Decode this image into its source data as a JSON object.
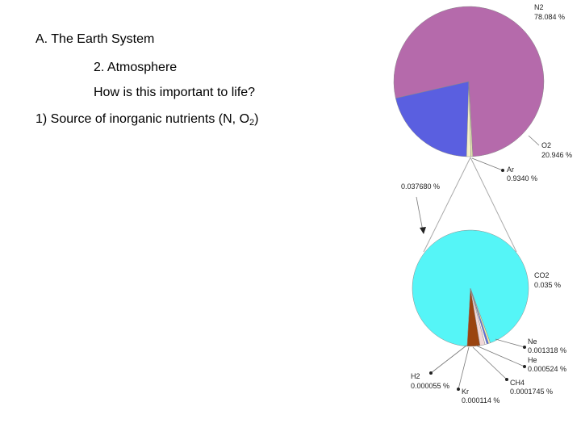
{
  "slide": {
    "heading": "A. The Earth System",
    "subheading": "2. Atmosphere",
    "question": "How is this important to life?",
    "point_prefix": "1) Source of inorganic nutrients (N, O",
    "point_sub": "2",
    "point_suffix": ")"
  },
  "chart_data": [
    {
      "type": "pie",
      "title": "",
      "slices": [
        {
          "label": "N2",
          "value": 78.084,
          "value_text": "78.084 %",
          "color": "#b56aab"
        },
        {
          "label": "O2",
          "value": 20.946,
          "value_text": "20.946 %",
          "color": "#5a5fe0"
        },
        {
          "label": "Ar",
          "value": 0.934,
          "value_text": "0.9340 %",
          "color": "#f4f0c8"
        },
        {
          "label": "",
          "value": 0.03768,
          "value_text": "0.037680 %",
          "color": "#e8e6b0"
        }
      ]
    },
    {
      "type": "pie",
      "title": "",
      "slices": [
        {
          "label": "CO2",
          "value": 0.035,
          "value_text": "0.035 %",
          "color": "#55f5f7"
        },
        {
          "label": "Ne",
          "value": 0.001318,
          "value_text": "0.001318 %",
          "color": "#9a4410"
        },
        {
          "label": "He",
          "value": 0.000524,
          "value_text": "0.000524 %",
          "color": "#f2d8d8"
        },
        {
          "label": "CH4",
          "value": 0.0001745,
          "value_text": "0.0001745 %",
          "color": "#ffffff"
        },
        {
          "label": "Kr",
          "value": 0.000114,
          "value_text": "0.000114 %",
          "color": "#5566ee"
        },
        {
          "label": "H2",
          "value": 5.5e-05,
          "value_text": "0.000055 %",
          "color": "#eeeeaa"
        }
      ]
    }
  ]
}
